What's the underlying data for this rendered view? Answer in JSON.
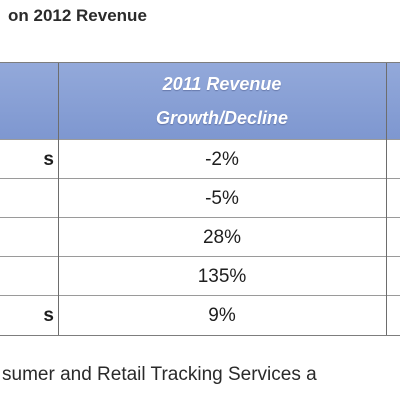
{
  "title": "on 2012 Revenue",
  "table": {
    "header": {
      "line1": "2011 Revenue",
      "line2": "Growth/Decline"
    },
    "rows": [
      {
        "label": "s",
        "value": "-2%"
      },
      {
        "label": "",
        "value": "-5%"
      },
      {
        "label": "",
        "value": "28%"
      },
      {
        "label": "",
        "value": "135%"
      },
      {
        "label": "s",
        "value": "9%"
      }
    ]
  },
  "footer": "sumer and Retail Tracking Services a"
}
